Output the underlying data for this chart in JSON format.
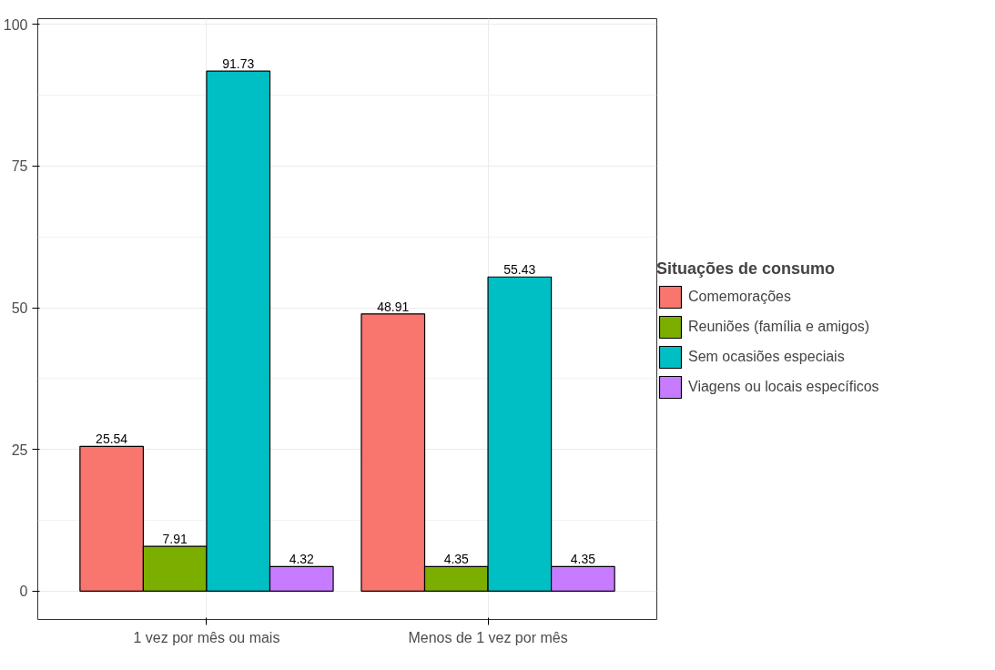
{
  "chart_data": {
    "type": "bar",
    "categories": [
      "1 vez por mês ou mais",
      "Menos de 1 vez por mês"
    ],
    "series": [
      {
        "name": "Comemorações",
        "color": "#f8766d",
        "values": [
          25.54,
          48.91
        ]
      },
      {
        "name": "Reuniões (família e amigos)",
        "color": "#7cae00",
        "values": [
          7.91,
          4.35
        ]
      },
      {
        "name": "Sem ocasiões especiais",
        "color": "#00bfc4",
        "values": [
          91.73,
          55.43
        ]
      },
      {
        "name": "Viagens ou locais específicos",
        "color": "#c77cff",
        "values": [
          4.32,
          4.35
        ]
      }
    ],
    "legend_title": "Situações de consumo",
    "legend": "right",
    "ylim": [
      -5,
      101
    ],
    "yticks": [
      0,
      25,
      50,
      75,
      100
    ],
    "grid": true,
    "data_labels": true
  }
}
